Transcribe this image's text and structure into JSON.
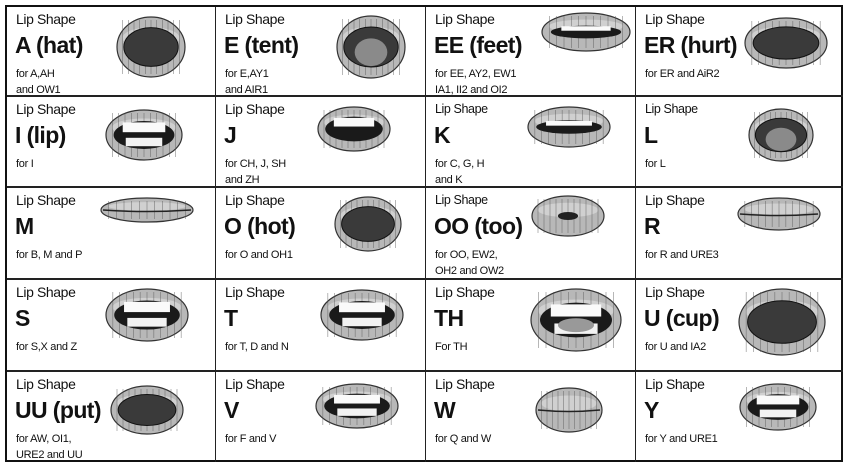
{
  "label": "Lip Shape",
  "cells": [
    {
      "name": "A (hat)",
      "desc": [
        "for A,AH",
        "and OW1"
      ],
      "mouth": "open-dark"
    },
    {
      "name": "E (tent)",
      "desc": [
        "for E,AY1",
        "and AIR1"
      ],
      "mouth": "open-tongue"
    },
    {
      "name": "EE (feet)",
      "desc": [
        "for EE, AY2, EW1",
        "IA1, II2 and OI2"
      ],
      "mouth": "teeth-wide"
    },
    {
      "name": "ER (hurt)",
      "desc": [
        "for ER and AiR2"
      ],
      "mouth": "open-dark"
    },
    {
      "name": "I (lip)",
      "desc": [
        "for I"
      ],
      "mouth": "teeth-open"
    },
    {
      "name": "J",
      "desc": [
        "for CH, J, SH",
        "and ZH"
      ],
      "mouth": "pucker-teeth"
    },
    {
      "name": "K",
      "desc": [
        "for C, G, H",
        "and K"
      ],
      "mouth": "teeth-wide"
    },
    {
      "name": "L",
      "desc": [
        "for L"
      ],
      "mouth": "open-tongue"
    },
    {
      "name": "M",
      "desc": [
        "for B, M and P"
      ],
      "mouth": "closed"
    },
    {
      "name": "O (hot)",
      "desc": [
        "for O and OH1"
      ],
      "mouth": "open-dark"
    },
    {
      "name": "OO (too)",
      "desc": [
        "for OO, EW2,",
        "OH2 and OW2"
      ],
      "mouth": "pucker"
    },
    {
      "name": "R",
      "desc": [
        "for R and URE3"
      ],
      "mouth": "pucker-closed"
    },
    {
      "name": "S",
      "desc": [
        "for S,X and Z"
      ],
      "mouth": "teeth"
    },
    {
      "name": "T",
      "desc": [
        "for T, D and N"
      ],
      "mouth": "teeth"
    },
    {
      "name": "TH",
      "desc": [
        "For TH"
      ],
      "mouth": "teeth-tongue"
    },
    {
      "name": "U (cup)",
      "desc": [
        "for U and IA2"
      ],
      "mouth": "open-dark"
    },
    {
      "name": "UU (put)",
      "desc": [
        "for AW, OI1,",
        "URE2 and UU"
      ],
      "mouth": "open-dark"
    },
    {
      "name": "V",
      "desc": [
        "for F and V"
      ],
      "mouth": "teeth"
    },
    {
      "name": "W",
      "desc": [
        "for Q and W"
      ],
      "mouth": "closed"
    },
    {
      "name": "Y",
      "desc": [
        "for Y and URE1"
      ],
      "mouth": "teeth"
    }
  ]
}
